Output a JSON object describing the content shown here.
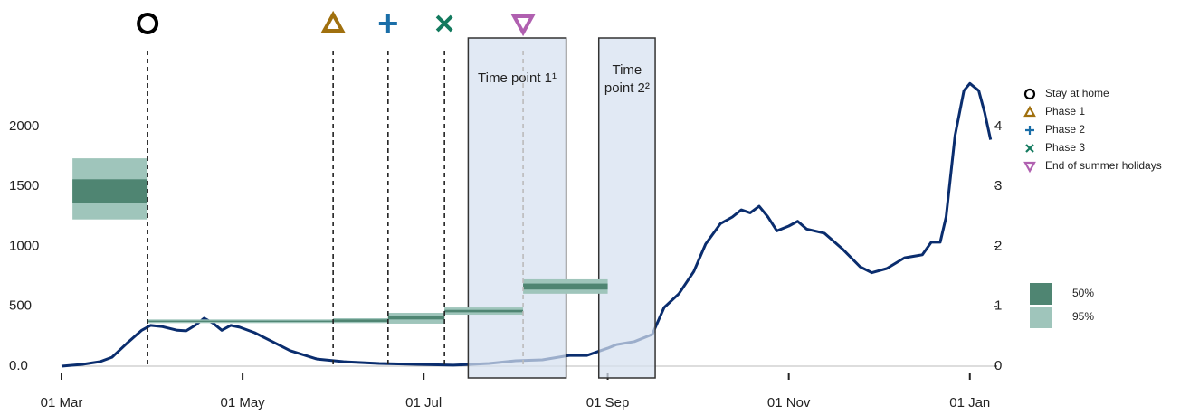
{
  "chart_data": {
    "type": "line",
    "x": [
      0,
      7,
      13,
      17,
      22,
      27,
      30,
      34,
      39,
      42,
      45,
      48,
      51,
      54,
      57,
      60,
      65,
      71,
      77,
      86,
      95,
      107,
      120,
      132,
      144,
      153,
      162,
      171,
      177,
      184,
      187,
      193,
      199,
      203,
      208,
      213,
      217,
      222,
      226,
      229,
      232,
      235,
      238,
      241,
      245,
      248,
      251,
      257,
      263,
      269,
      273,
      278,
      284,
      290,
      293,
      296,
      298,
      301,
      304,
      306,
      309,
      311,
      313
    ],
    "series": [
      {
        "color": "#0a2d6e",
        "values": [
          0,
          15,
          38,
          75,
          190,
          300,
          340,
          330,
          300,
          295,
          340,
          400,
          360,
          300,
          340,
          325,
          280,
          205,
          130,
          60,
          38,
          23,
          15,
          8,
          23,
          45,
          53,
          90,
          90,
          150,
          180,
          205,
          265,
          490,
          605,
          790,
          1020,
          1190,
          1245,
          1305,
          1280,
          1335,
          1245,
          1130,
          1170,
          1210,
          1145,
          1110,
          980,
          830,
          780,
          815,
          905,
          930,
          1035,
          1035,
          1245,
          1925,
          2300,
          2360,
          2300,
          2115,
          1890
        ]
      }
    ],
    "xlim": [
      0,
      314
    ],
    "xticks": [
      {
        "value": 0,
        "label": "01 Mar"
      },
      {
        "value": 61,
        "label": "01 May"
      },
      {
        "value": 122,
        "label": "01 Jul"
      },
      {
        "value": 184,
        "label": "01 Sep"
      },
      {
        "value": 245,
        "label": "01 Nov"
      },
      {
        "value": 306,
        "label": "01 Jan"
      }
    ],
    "ylim": [
      0,
      2400
    ],
    "yticks": [
      {
        "value": 0,
        "label": "0.0"
      },
      500,
      1000,
      1500,
      2000
    ],
    "y2lim": [
      0,
      4.8
    ],
    "y2ticks": [
      0,
      1,
      2,
      3,
      4
    ],
    "events": [
      {
        "name": "Stay at home",
        "x": 29,
        "symbol": "circle",
        "color": "#000000",
        "line_color": "#222222"
      },
      {
        "name": "Phase 1",
        "x": 91.5,
        "symbol": "triangle",
        "color": "#a0700e",
        "line_color": "#222222"
      },
      {
        "name": "Phase 2",
        "x": 110,
        "symbol": "plus",
        "color": "#1a6ea8",
        "line_color": "#222222"
      },
      {
        "name": "Phase 3",
        "x": 129,
        "symbol": "cross",
        "color": "#137a5e",
        "line_color": "#222222"
      },
      {
        "name": "End of summer holidays",
        "x": 155.5,
        "symbol": "triangle-down",
        "color": "#b060b0",
        "line_color": "#bbbbbb"
      }
    ],
    "time_windows": [
      {
        "label_lines": [
          "Time point 1¹"
        ],
        "x": [
          137,
          170
        ]
      },
      {
        "label_lines": [
          "Time",
          "point 2²"
        ],
        "x": [
          181,
          200
        ]
      }
    ],
    "reproduction": [
      {
        "x": [
          3.7,
          29
        ],
        "ci50": [
          2.72,
          3.12
        ],
        "ci95": [
          2.45,
          3.47
        ]
      },
      {
        "x": [
          29,
          91.5
        ],
        "ci50": [
          0.74,
          0.76
        ],
        "ci95": [
          0.72,
          0.78
        ]
      },
      {
        "x": [
          91.5,
          110
        ],
        "ci50": [
          0.74,
          0.78
        ],
        "ci95": [
          0.72,
          0.8
        ]
      },
      {
        "x": [
          110,
          129
        ],
        "ci50": [
          0.78,
          0.84
        ],
        "ci95": [
          0.71,
          0.89
        ]
      },
      {
        "x": [
          129,
          155.5
        ],
        "ci50": [
          0.9,
          0.94
        ],
        "ci95": [
          0.86,
          0.98
        ]
      },
      {
        "x": [
          155.5,
          184
        ],
        "ci50": [
          1.28,
          1.38
        ],
        "ci95": [
          1.21,
          1.45
        ]
      }
    ],
    "ci_legend": [
      {
        "name": "50%",
        "color": "#4f8572"
      },
      {
        "name": "95%",
        "color": "#9fc5bb"
      }
    ]
  }
}
